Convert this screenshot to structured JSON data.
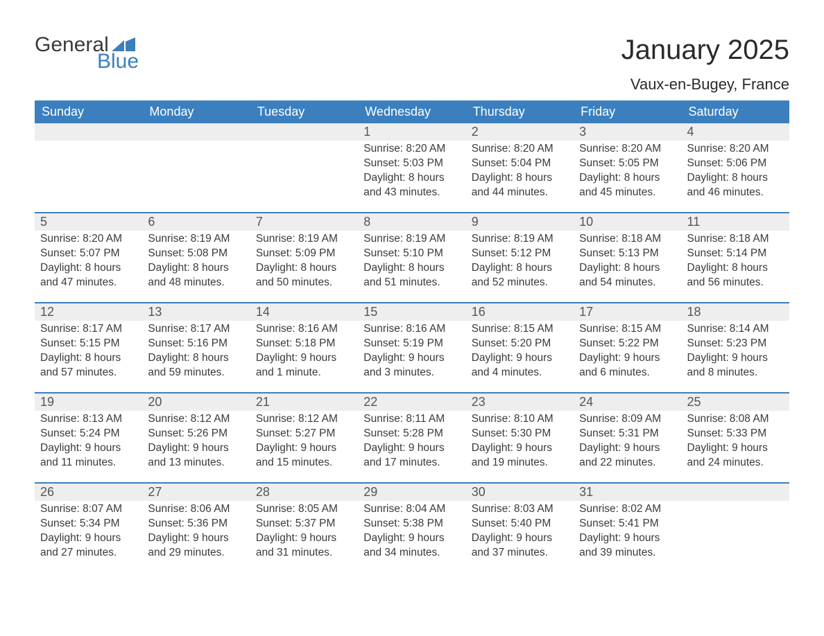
{
  "brand": {
    "word1": "General",
    "word2": "Blue",
    "word1_color": "#3a3a3a",
    "word2_color": "#3b7fbf",
    "flag_color": "#3b7fbf"
  },
  "header": {
    "title": "January 2025",
    "location": "Vaux-en-Bugey, France"
  },
  "colors": {
    "header_bg": "#3b7fbf",
    "header_text": "#ffffff",
    "daynum_bg": "#eeeeee",
    "border_color": "#3b7fbf",
    "text_color": "#3a3a3a",
    "page_bg": "#ffffff"
  },
  "daysOfWeek": [
    "Sunday",
    "Monday",
    "Tuesday",
    "Wednesday",
    "Thursday",
    "Friday",
    "Saturday"
  ],
  "weeks": [
    [
      null,
      null,
      null,
      {
        "num": "1",
        "sunrise": "Sunrise: 8:20 AM",
        "sunset": "Sunset: 5:03 PM",
        "daylight1": "Daylight: 8 hours",
        "daylight2": "and 43 minutes."
      },
      {
        "num": "2",
        "sunrise": "Sunrise: 8:20 AM",
        "sunset": "Sunset: 5:04 PM",
        "daylight1": "Daylight: 8 hours",
        "daylight2": "and 44 minutes."
      },
      {
        "num": "3",
        "sunrise": "Sunrise: 8:20 AM",
        "sunset": "Sunset: 5:05 PM",
        "daylight1": "Daylight: 8 hours",
        "daylight2": "and 45 minutes."
      },
      {
        "num": "4",
        "sunrise": "Sunrise: 8:20 AM",
        "sunset": "Sunset: 5:06 PM",
        "daylight1": "Daylight: 8 hours",
        "daylight2": "and 46 minutes."
      }
    ],
    [
      {
        "num": "5",
        "sunrise": "Sunrise: 8:20 AM",
        "sunset": "Sunset: 5:07 PM",
        "daylight1": "Daylight: 8 hours",
        "daylight2": "and 47 minutes."
      },
      {
        "num": "6",
        "sunrise": "Sunrise: 8:19 AM",
        "sunset": "Sunset: 5:08 PM",
        "daylight1": "Daylight: 8 hours",
        "daylight2": "and 48 minutes."
      },
      {
        "num": "7",
        "sunrise": "Sunrise: 8:19 AM",
        "sunset": "Sunset: 5:09 PM",
        "daylight1": "Daylight: 8 hours",
        "daylight2": "and 50 minutes."
      },
      {
        "num": "8",
        "sunrise": "Sunrise: 8:19 AM",
        "sunset": "Sunset: 5:10 PM",
        "daylight1": "Daylight: 8 hours",
        "daylight2": "and 51 minutes."
      },
      {
        "num": "9",
        "sunrise": "Sunrise: 8:19 AM",
        "sunset": "Sunset: 5:12 PM",
        "daylight1": "Daylight: 8 hours",
        "daylight2": "and 52 minutes."
      },
      {
        "num": "10",
        "sunrise": "Sunrise: 8:18 AM",
        "sunset": "Sunset: 5:13 PM",
        "daylight1": "Daylight: 8 hours",
        "daylight2": "and 54 minutes."
      },
      {
        "num": "11",
        "sunrise": "Sunrise: 8:18 AM",
        "sunset": "Sunset: 5:14 PM",
        "daylight1": "Daylight: 8 hours",
        "daylight2": "and 56 minutes."
      }
    ],
    [
      {
        "num": "12",
        "sunrise": "Sunrise: 8:17 AM",
        "sunset": "Sunset: 5:15 PM",
        "daylight1": "Daylight: 8 hours",
        "daylight2": "and 57 minutes."
      },
      {
        "num": "13",
        "sunrise": "Sunrise: 8:17 AM",
        "sunset": "Sunset: 5:16 PM",
        "daylight1": "Daylight: 8 hours",
        "daylight2": "and 59 minutes."
      },
      {
        "num": "14",
        "sunrise": "Sunrise: 8:16 AM",
        "sunset": "Sunset: 5:18 PM",
        "daylight1": "Daylight: 9 hours",
        "daylight2": "and 1 minute."
      },
      {
        "num": "15",
        "sunrise": "Sunrise: 8:16 AM",
        "sunset": "Sunset: 5:19 PM",
        "daylight1": "Daylight: 9 hours",
        "daylight2": "and 3 minutes."
      },
      {
        "num": "16",
        "sunrise": "Sunrise: 8:15 AM",
        "sunset": "Sunset: 5:20 PM",
        "daylight1": "Daylight: 9 hours",
        "daylight2": "and 4 minutes."
      },
      {
        "num": "17",
        "sunrise": "Sunrise: 8:15 AM",
        "sunset": "Sunset: 5:22 PM",
        "daylight1": "Daylight: 9 hours",
        "daylight2": "and 6 minutes."
      },
      {
        "num": "18",
        "sunrise": "Sunrise: 8:14 AM",
        "sunset": "Sunset: 5:23 PM",
        "daylight1": "Daylight: 9 hours",
        "daylight2": "and 8 minutes."
      }
    ],
    [
      {
        "num": "19",
        "sunrise": "Sunrise: 8:13 AM",
        "sunset": "Sunset: 5:24 PM",
        "daylight1": "Daylight: 9 hours",
        "daylight2": "and 11 minutes."
      },
      {
        "num": "20",
        "sunrise": "Sunrise: 8:12 AM",
        "sunset": "Sunset: 5:26 PM",
        "daylight1": "Daylight: 9 hours",
        "daylight2": "and 13 minutes."
      },
      {
        "num": "21",
        "sunrise": "Sunrise: 8:12 AM",
        "sunset": "Sunset: 5:27 PM",
        "daylight1": "Daylight: 9 hours",
        "daylight2": "and 15 minutes."
      },
      {
        "num": "22",
        "sunrise": "Sunrise: 8:11 AM",
        "sunset": "Sunset: 5:28 PM",
        "daylight1": "Daylight: 9 hours",
        "daylight2": "and 17 minutes."
      },
      {
        "num": "23",
        "sunrise": "Sunrise: 8:10 AM",
        "sunset": "Sunset: 5:30 PM",
        "daylight1": "Daylight: 9 hours",
        "daylight2": "and 19 minutes."
      },
      {
        "num": "24",
        "sunrise": "Sunrise: 8:09 AM",
        "sunset": "Sunset: 5:31 PM",
        "daylight1": "Daylight: 9 hours",
        "daylight2": "and 22 minutes."
      },
      {
        "num": "25",
        "sunrise": "Sunrise: 8:08 AM",
        "sunset": "Sunset: 5:33 PM",
        "daylight1": "Daylight: 9 hours",
        "daylight2": "and 24 minutes."
      }
    ],
    [
      {
        "num": "26",
        "sunrise": "Sunrise: 8:07 AM",
        "sunset": "Sunset: 5:34 PM",
        "daylight1": "Daylight: 9 hours",
        "daylight2": "and 27 minutes."
      },
      {
        "num": "27",
        "sunrise": "Sunrise: 8:06 AM",
        "sunset": "Sunset: 5:36 PM",
        "daylight1": "Daylight: 9 hours",
        "daylight2": "and 29 minutes."
      },
      {
        "num": "28",
        "sunrise": "Sunrise: 8:05 AM",
        "sunset": "Sunset: 5:37 PM",
        "daylight1": "Daylight: 9 hours",
        "daylight2": "and 31 minutes."
      },
      {
        "num": "29",
        "sunrise": "Sunrise: 8:04 AM",
        "sunset": "Sunset: 5:38 PM",
        "daylight1": "Daylight: 9 hours",
        "daylight2": "and 34 minutes."
      },
      {
        "num": "30",
        "sunrise": "Sunrise: 8:03 AM",
        "sunset": "Sunset: 5:40 PM",
        "daylight1": "Daylight: 9 hours",
        "daylight2": "and 37 minutes."
      },
      {
        "num": "31",
        "sunrise": "Sunrise: 8:02 AM",
        "sunset": "Sunset: 5:41 PM",
        "daylight1": "Daylight: 9 hours",
        "daylight2": "and 39 minutes."
      },
      null
    ]
  ]
}
